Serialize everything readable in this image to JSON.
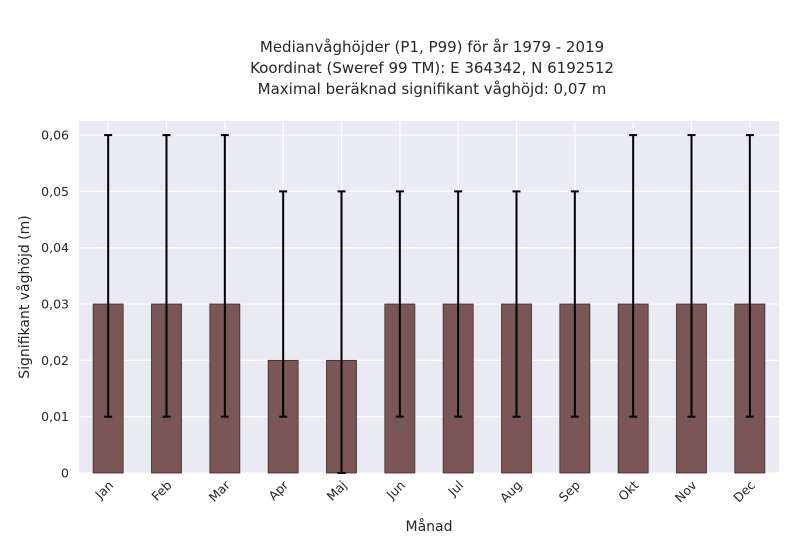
{
  "chart_data": {
    "type": "bar",
    "title_lines": [
      "Medianvåghöjder (P1, P99) för år 1979 - 2019",
      "Koordinat (Sweref 99 TM): E 364342, N 6192512",
      "Maximal beräknad signifikant våghöjd: 0,07 m"
    ],
    "xlabel": "Månad",
    "ylabel": "Signifikant våghöjd (m)",
    "categories": [
      "Jan",
      "Feb",
      "Mar",
      "Apr",
      "Maj",
      "Jun",
      "Jul",
      "Aug",
      "Sep",
      "Okt",
      "Nov",
      "Dec"
    ],
    "values": [
      0.03,
      0.03,
      0.03,
      0.02,
      0.02,
      0.03,
      0.03,
      0.03,
      0.03,
      0.03,
      0.03,
      0.03
    ],
    "error_low": [
      0.01,
      0.01,
      0.01,
      0.01,
      0.0,
      0.01,
      0.01,
      0.01,
      0.01,
      0.01,
      0.01,
      0.01
    ],
    "error_high": [
      0.06,
      0.06,
      0.06,
      0.05,
      0.05,
      0.05,
      0.05,
      0.05,
      0.05,
      0.06,
      0.06,
      0.06
    ],
    "ylim": [
      0,
      0.0625
    ],
    "yticks": [
      0,
      0.01,
      0.02,
      0.03,
      0.04,
      0.05,
      0.06
    ],
    "ytick_labels": [
      "0",
      "0,01",
      "0,02",
      "0,03",
      "0,04",
      "0,05",
      "0,06"
    ],
    "grid": true,
    "colors": {
      "bar": "#7a5656",
      "bar_edge": "#3a2a2a",
      "background": "#eaeaf2",
      "grid": "#ffffff",
      "error_bar": "#000000"
    }
  }
}
